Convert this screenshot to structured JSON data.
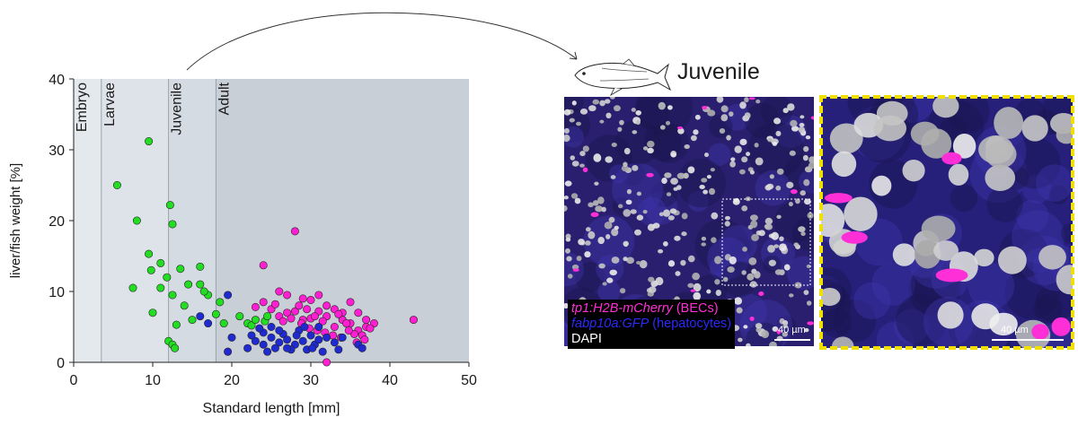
{
  "chart_data": {
    "type": "scatter",
    "xlabel": "Standard length [mm]",
    "ylabel": "liver/fish weight [%]",
    "xlim": [
      0,
      50
    ],
    "ylim": [
      0,
      40
    ],
    "xticks": [
      0,
      10,
      20,
      30,
      40,
      50
    ],
    "yticks": [
      0,
      10,
      20,
      30,
      40
    ],
    "stages": [
      {
        "label": "Embryo",
        "start": 0,
        "end": 3.5,
        "color": "#e4e9ee"
      },
      {
        "label": "Larvae",
        "start": 3.5,
        "end": 12,
        "color": "#dde3e8"
      },
      {
        "label": "Juvenile",
        "start": 12,
        "end": 18,
        "color": "#d5dbe2"
      },
      {
        "label": "Adult",
        "start": 18,
        "end": 50,
        "color": "#c9cfd7"
      }
    ],
    "series": [
      {
        "color": "#22dd22",
        "points": [
          [
            5.5,
            25
          ],
          [
            8,
            20
          ],
          [
            9.5,
            31.2
          ],
          [
            9.5,
            15.3
          ],
          [
            9.8,
            13
          ],
          [
            7.5,
            10.5
          ],
          [
            10,
            7
          ],
          [
            11,
            14
          ],
          [
            11,
            10.5
          ],
          [
            12.2,
            22.2
          ],
          [
            12.5,
            19.5
          ],
          [
            11.8,
            12
          ],
          [
            12.5,
            9.5
          ],
          [
            13.5,
            13.2
          ],
          [
            13,
            5.3
          ],
          [
            12,
            3
          ],
          [
            12.5,
            2.5
          ],
          [
            12.8,
            2
          ],
          [
            14,
            8
          ],
          [
            15,
            6
          ],
          [
            14.5,
            11
          ],
          [
            16,
            13.5
          ],
          [
            16,
            11
          ],
          [
            17,
            9.5
          ],
          [
            16.5,
            10
          ],
          [
            18,
            6.8
          ],
          [
            18.5,
            8.5
          ],
          [
            19,
            5.5
          ],
          [
            21,
            6.5
          ],
          [
            22,
            5.5
          ],
          [
            22.5,
            5.2
          ],
          [
            23,
            6
          ],
          [
            24.2,
            5.8
          ],
          [
            24.5,
            6.5
          ]
        ]
      },
      {
        "color": "#ff1fd2",
        "points": [
          [
            24,
            13.7
          ],
          [
            28,
            18.5
          ],
          [
            26,
            10
          ],
          [
            27,
            9.5
          ],
          [
            29,
            9
          ],
          [
            30,
            8.8
          ],
          [
            31,
            9.5
          ],
          [
            32,
            8
          ],
          [
            33,
            7.5
          ],
          [
            34,
            7
          ],
          [
            35,
            8.5
          ],
          [
            36,
            7
          ],
          [
            37,
            6
          ],
          [
            38,
            5.5
          ],
          [
            43,
            6
          ],
          [
            24,
            8.5
          ],
          [
            25,
            7.5
          ],
          [
            26,
            6.5
          ],
          [
            27,
            7
          ],
          [
            28,
            7.2
          ],
          [
            29,
            6
          ],
          [
            30,
            6.2
          ],
          [
            31,
            7.2
          ],
          [
            32,
            6.5
          ],
          [
            33,
            5
          ],
          [
            34,
            6
          ],
          [
            35,
            5.5
          ],
          [
            36,
            4.5
          ],
          [
            37,
            5
          ],
          [
            23,
            7.8
          ],
          [
            28.5,
            8
          ],
          [
            29.5,
            7.5
          ],
          [
            30.5,
            6.5
          ],
          [
            31.5,
            5.8
          ],
          [
            33.5,
            6.8
          ],
          [
            34.5,
            5.5
          ],
          [
            35.5,
            4
          ],
          [
            36.5,
            3.8
          ],
          [
            37.5,
            4.8
          ],
          [
            25.5,
            8.2
          ],
          [
            26.5,
            5.8
          ],
          [
            27.5,
            6.2
          ],
          [
            28.8,
            5.5
          ],
          [
            29.8,
            4.8
          ],
          [
            30.8,
            4.5
          ],
          [
            31.8,
            4.2
          ],
          [
            32.8,
            3.8
          ],
          [
            33.8,
            3.5
          ],
          [
            34.8,
            4.5
          ],
          [
            35.8,
            2.8
          ],
          [
            36.8,
            3.2
          ],
          [
            32,
            0
          ]
        ]
      },
      {
        "color": "#1f2ad0",
        "points": [
          [
            16,
            6.5
          ],
          [
            19.5,
            9.5
          ],
          [
            17,
            5.5
          ],
          [
            20,
            3.5
          ],
          [
            19.5,
            1.5
          ],
          [
            22,
            2
          ],
          [
            23,
            3
          ],
          [
            24,
            2.5
          ],
          [
            24,
            4.2
          ],
          [
            25,
            3.5
          ],
          [
            26,
            2.8
          ],
          [
            26.5,
            4
          ],
          [
            27,
            3.2
          ],
          [
            28,
            2.5
          ],
          [
            28.5,
            4.5
          ],
          [
            29,
            3
          ],
          [
            29.5,
            1.8
          ],
          [
            30,
            3.8
          ],
          [
            30.5,
            2.5
          ],
          [
            31,
            3.2
          ],
          [
            31.5,
            1.5
          ],
          [
            32,
            3.5
          ],
          [
            33,
            2.8
          ],
          [
            33.5,
            1.8
          ],
          [
            34,
            3.5
          ],
          [
            24.5,
            1.5
          ],
          [
            25.5,
            2
          ],
          [
            26,
            4.5
          ],
          [
            27.5,
            1.8
          ],
          [
            28.2,
            3.8
          ],
          [
            29.2,
            5
          ],
          [
            30.2,
            2
          ],
          [
            22.5,
            3.8
          ],
          [
            23.5,
            4.8
          ],
          [
            25,
            5
          ],
          [
            27,
            2
          ],
          [
            31,
            5
          ],
          [
            36,
            2.5
          ],
          [
            36.5,
            2
          ]
        ]
      }
    ]
  },
  "stage_labels": {
    "embryo": "Embryo",
    "larvae": "Larvae",
    "juvenile": "Juvenile",
    "adult": "Adult"
  },
  "image_panel": {
    "title": "Juvenile",
    "legend": {
      "line1_marker": "tp1:H2B-mCherry",
      "line1_suffix": " (BECs)",
      "line2_marker": "fabp10a:GFP",
      "line2_suffix": " (hepatocytes)",
      "line3": "DAPI",
      "color_line1": "#ff2fd8",
      "color_line2": "#2a2aff",
      "color_line3": "#ffffff"
    },
    "scalebar_overview": "40 µm",
    "scalebar_zoom": "40 µm",
    "zoom_border_color": "#f0e000"
  }
}
